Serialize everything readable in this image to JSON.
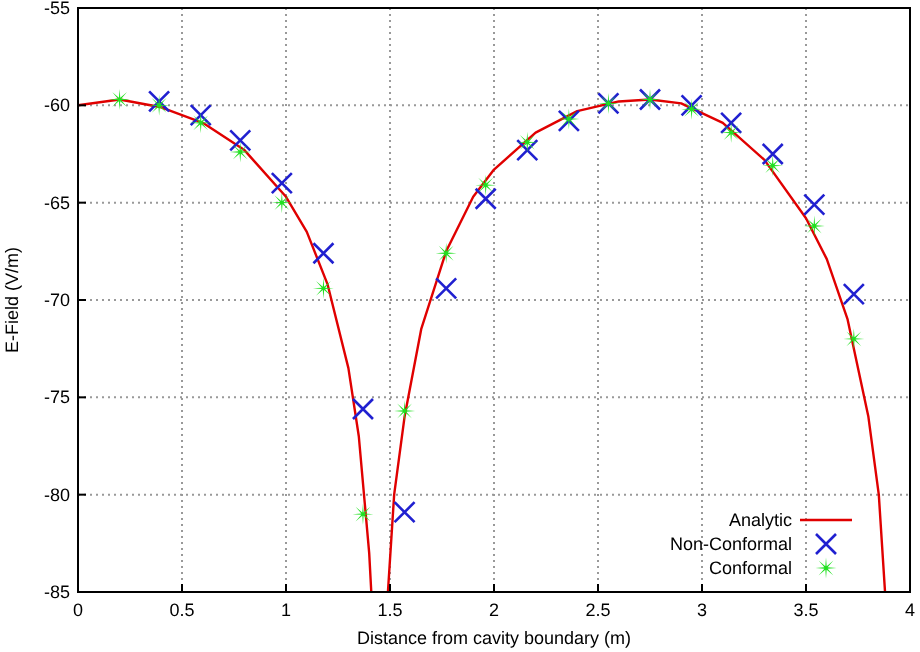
{
  "chart_data": {
    "type": "line",
    "xlabel": "Distance from cavity boundary (m)",
    "ylabel": "E-Field (V/m)",
    "xlim": [
      0,
      4
    ],
    "ylim": [
      -85,
      -55
    ],
    "xticks": [
      0,
      0.5,
      1,
      1.5,
      2,
      2.5,
      3,
      3.5,
      4
    ],
    "yticks": [
      -85,
      -80,
      -75,
      -70,
      -65,
      -60,
      -55
    ],
    "grid": true,
    "legend": "bottom right",
    "series": [
      {
        "name": "Analytic",
        "color": "#e00000",
        "marker": "none",
        "x": [
          0,
          0.2,
          0.4,
          0.6,
          0.8,
          1.0,
          1.1,
          1.2,
          1.3,
          1.35,
          1.4,
          1.41,
          1.45,
          1.49,
          1.52,
          1.57,
          1.65,
          1.77,
          1.9,
          2.0,
          2.2,
          2.4,
          2.6,
          2.75,
          2.9,
          3.1,
          3.3,
          3.5,
          3.6,
          3.7,
          3.8,
          3.85,
          3.88
        ],
        "values": [
          -60,
          -59.7,
          -60.1,
          -60.9,
          -62.3,
          -64.7,
          -66.5,
          -69.2,
          -73.5,
          -77,
          -83,
          -85,
          null,
          -85,
          -80,
          -76,
          -71.5,
          -67.5,
          -64.7,
          -63.3,
          -61.4,
          -60.3,
          -59.8,
          -59.7,
          -59.9,
          -60.9,
          -62.8,
          -65.8,
          -67.9,
          -71,
          -76,
          -80,
          -85
        ]
      },
      {
        "name": "Non-Conformal",
        "type": "scatter",
        "color": "#2020d0",
        "marker": "cross",
        "x": [
          0.39,
          0.59,
          0.78,
          0.98,
          1.18,
          1.37,
          1.57,
          1.77,
          1.96,
          2.16,
          2.36,
          2.55,
          2.75,
          2.95,
          3.14,
          3.34,
          3.54,
          3.73
        ],
        "values": [
          -59.8,
          -60.5,
          -61.8,
          -64,
          -67.6,
          -75.6,
          -80.9,
          -69.4,
          -64.8,
          -62.3,
          -60.8,
          -59.9,
          -59.7,
          -60,
          -60.9,
          -62.5,
          -65.1,
          -69.7
        ]
      },
      {
        "name": "Conformal",
        "type": "scatter",
        "color": "#20e020",
        "marker": "star",
        "x": [
          0.2,
          0.39,
          0.59,
          0.78,
          0.98,
          1.18,
          1.37,
          1.57,
          1.77,
          1.96,
          2.16,
          2.36,
          2.55,
          2.75,
          2.95,
          3.14,
          3.34,
          3.54,
          3.73
        ],
        "values": [
          -59.7,
          -60,
          -60.9,
          -62.4,
          -65,
          -69.4,
          -81,
          -75.7,
          -67.6,
          -64.1,
          -61.9,
          -60.7,
          -59.9,
          -59.7,
          -60.2,
          -61.4,
          -63.1,
          -66.2,
          -72
        ]
      }
    ]
  }
}
